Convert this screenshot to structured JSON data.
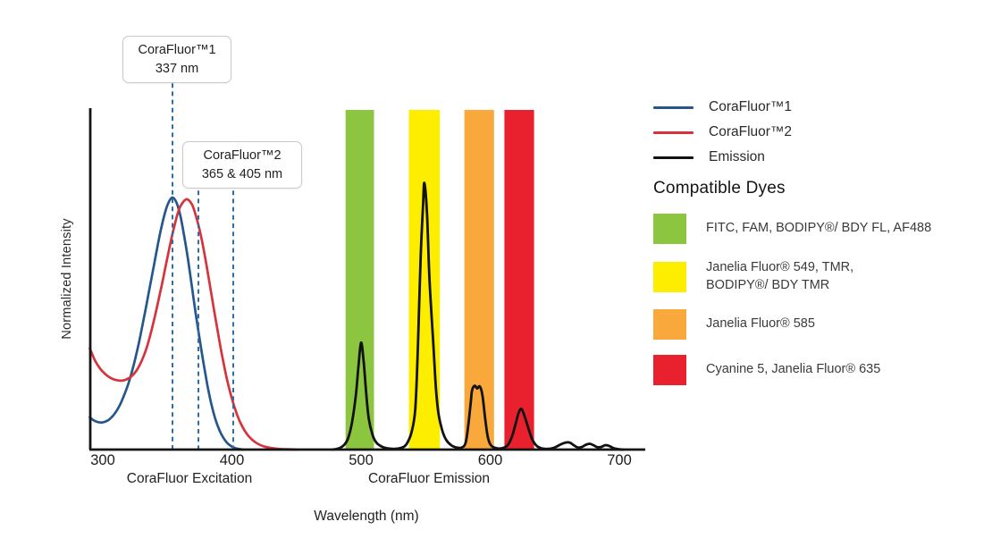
{
  "chart_data": {
    "type": "line",
    "xlabel": "Wavelength (nm)",
    "ylabel": "Normalized Intensity",
    "x_ticks": [
      300,
      400,
      500,
      600,
      700
    ],
    "x_range_nm": [
      290,
      720
    ],
    "y_range": [
      0,
      1
    ],
    "grid": false,
    "legend_position": "right",
    "section_labels": {
      "excitation": "CoraFluor Excitation",
      "emission": "CoraFluor Emission"
    },
    "marker_color": "#2f6da5",
    "annotations": [
      {
        "title": "CoraFluor™1",
        "value": "337 nm",
        "marker_nm": [
          337
        ]
      },
      {
        "title": "CoraFluor™2",
        "value": "365 & 405 nm",
        "marker_nm": [
          365,
          405
        ]
      }
    ],
    "bands": [
      {
        "dyes": "FITC, FAM, BODIPY®/ BDY FL, AF488",
        "color": "#8cc540",
        "from_nm": 488,
        "to_nm": 510
      },
      {
        "dyes": "Janelia Fluor® 549, TMR, BODIPY®/ BDY TMR",
        "color": "#fdee00",
        "from_nm": 537,
        "to_nm": 561
      },
      {
        "dyes": "Janelia Fluor® 585",
        "color": "#f9a93c",
        "from_nm": 580,
        "to_nm": 603
      },
      {
        "dyes": "Cyanine 5, Janelia Fluor® 635",
        "color": "#e9212e",
        "from_nm": 611,
        "to_nm": 634
      }
    ],
    "series": [
      {
        "name": "CoraFluor™1",
        "kind": "excitation",
        "color": "#26578c",
        "points": [
          [
            290,
            0.095
          ],
          [
            293,
            0.086
          ],
          [
            296,
            0.081
          ],
          [
            300,
            0.08
          ],
          [
            304,
            0.086
          ],
          [
            308,
            0.1
          ],
          [
            312,
            0.122
          ],
          [
            316,
            0.155
          ],
          [
            320,
            0.196
          ],
          [
            324,
            0.25
          ],
          [
            328,
            0.315
          ],
          [
            332,
            0.39
          ],
          [
            336,
            0.47
          ],
          [
            340,
            0.55
          ],
          [
            344,
            0.63
          ],
          [
            348,
            0.695
          ],
          [
            351,
            0.728
          ],
          [
            354,
            0.742
          ],
          [
            357,
            0.728
          ],
          [
            360,
            0.69
          ],
          [
            363,
            0.63
          ],
          [
            366,
            0.56
          ],
          [
            369,
            0.48
          ],
          [
            372,
            0.4
          ],
          [
            375,
            0.325
          ],
          [
            378,
            0.255
          ],
          [
            381,
            0.19
          ],
          [
            384,
            0.135
          ],
          [
            387,
            0.092
          ],
          [
            390,
            0.06
          ],
          [
            393,
            0.037
          ],
          [
            396,
            0.021
          ],
          [
            399,
            0.011
          ],
          [
            402,
            0.005
          ],
          [
            405,
            0.002
          ],
          [
            409,
            0
          ]
        ]
      },
      {
        "name": "CoraFluor™2",
        "kind": "excitation",
        "color": "#d7333c",
        "points": [
          [
            290,
            0.298
          ],
          [
            294,
            0.262
          ],
          [
            298,
            0.238
          ],
          [
            302,
            0.222
          ],
          [
            306,
            0.211
          ],
          [
            310,
            0.205
          ],
          [
            314,
            0.203
          ],
          [
            318,
            0.206
          ],
          [
            322,
            0.215
          ],
          [
            326,
            0.232
          ],
          [
            330,
            0.26
          ],
          [
            334,
            0.3
          ],
          [
            338,
            0.355
          ],
          [
            342,
            0.42
          ],
          [
            346,
            0.49
          ],
          [
            350,
            0.565
          ],
          [
            354,
            0.635
          ],
          [
            358,
            0.695
          ],
          [
            361,
            0.722
          ],
          [
            365,
            0.737
          ],
          [
            369,
            0.722
          ],
          [
            372,
            0.69
          ],
          [
            376,
            0.63
          ],
          [
            380,
            0.55
          ],
          [
            384,
            0.46
          ],
          [
            388,
            0.37
          ],
          [
            392,
            0.285
          ],
          [
            396,
            0.21
          ],
          [
            400,
            0.15
          ],
          [
            404,
            0.102
          ],
          [
            408,
            0.068
          ],
          [
            412,
            0.044
          ],
          [
            416,
            0.028
          ],
          [
            420,
            0.017
          ],
          [
            425,
            0.009
          ],
          [
            430,
            0.005
          ],
          [
            436,
            0.002
          ],
          [
            442,
            0.001
          ],
          [
            450,
            0
          ]
        ]
      },
      {
        "name": "Emission",
        "kind": "emission",
        "color": "#121212",
        "points": [
          [
            478,
            0
          ],
          [
            483,
            0.004
          ],
          [
            487,
            0.014
          ],
          [
            490,
            0.034
          ],
          [
            493,
            0.08
          ],
          [
            496,
            0.16
          ],
          [
            498,
            0.245
          ],
          [
            500,
            0.315
          ],
          [
            502,
            0.26
          ],
          [
            504,
            0.165
          ],
          [
            506,
            0.09
          ],
          [
            509,
            0.042
          ],
          [
            512,
            0.02
          ],
          [
            516,
            0.009
          ],
          [
            520,
            0.004
          ],
          [
            526,
            0.002
          ],
          [
            531,
            0.005
          ],
          [
            535,
            0.015
          ],
          [
            539,
            0.05
          ],
          [
            542,
            0.12
          ],
          [
            544,
            0.3
          ],
          [
            546,
            0.55
          ],
          [
            548,
            0.72
          ],
          [
            549,
            0.785
          ],
          [
            551,
            0.7
          ],
          [
            553,
            0.5
          ],
          [
            556,
            0.31
          ],
          [
            558,
            0.18
          ],
          [
            560,
            0.105
          ],
          [
            563,
            0.055
          ],
          [
            566,
            0.028
          ],
          [
            570,
            0.012
          ],
          [
            574,
            0.006
          ],
          [
            578,
            0.006
          ],
          [
            581,
            0.02
          ],
          [
            583,
            0.07
          ],
          [
            585,
            0.14
          ],
          [
            586,
            0.175
          ],
          [
            588,
            0.188
          ],
          [
            590,
            0.18
          ],
          [
            592,
            0.186
          ],
          [
            594,
            0.16
          ],
          [
            596,
            0.095
          ],
          [
            598,
            0.04
          ],
          [
            600,
            0.016
          ],
          [
            603,
            0.006
          ],
          [
            607,
            0.003
          ],
          [
            611,
            0.006
          ],
          [
            614,
            0.015
          ],
          [
            617,
            0.04
          ],
          [
            620,
            0.08
          ],
          [
            622,
            0.108
          ],
          [
            624,
            0.12
          ],
          [
            626,
            0.105
          ],
          [
            629,
            0.07
          ],
          [
            632,
            0.035
          ],
          [
            635,
            0.015
          ],
          [
            638,
            0.006
          ],
          [
            642,
            0.002
          ],
          [
            647,
            0.003
          ],
          [
            651,
            0.008
          ],
          [
            655,
            0.016
          ],
          [
            659,
            0.021
          ],
          [
            662,
            0.02
          ],
          [
            665,
            0.012
          ],
          [
            668,
            0.006
          ],
          [
            671,
            0.008
          ],
          [
            674,
            0.014
          ],
          [
            677,
            0.017
          ],
          [
            680,
            0.013
          ],
          [
            683,
            0.007
          ],
          [
            686,
            0.008
          ],
          [
            689,
            0.013
          ],
          [
            692,
            0.011
          ],
          [
            695,
            0.005
          ],
          [
            698,
            0.002
          ],
          [
            703,
            0
          ]
        ]
      }
    ]
  },
  "legend": {
    "items": [
      {
        "label": "CoraFluor™1",
        "color": "#26578c"
      },
      {
        "label": "CoraFluor™2",
        "color": "#d7333c"
      },
      {
        "label": "Emission",
        "color": "#121212"
      }
    ]
  },
  "dye_panel": {
    "title": "Compatible Dyes",
    "items": [
      {
        "label": "FITC, FAM, BODIPY®/ BDY FL, AF488",
        "color": "#8cc540"
      },
      {
        "label": "Janelia Fluor® 549, TMR,\nBODIPY®/ BDY TMR",
        "color": "#fdee00"
      },
      {
        "label": "Janelia Fluor® 585",
        "color": "#f9a93c"
      },
      {
        "label": "Cyanine 5, Janelia Fluor® 635",
        "color": "#e9212e"
      }
    ]
  }
}
